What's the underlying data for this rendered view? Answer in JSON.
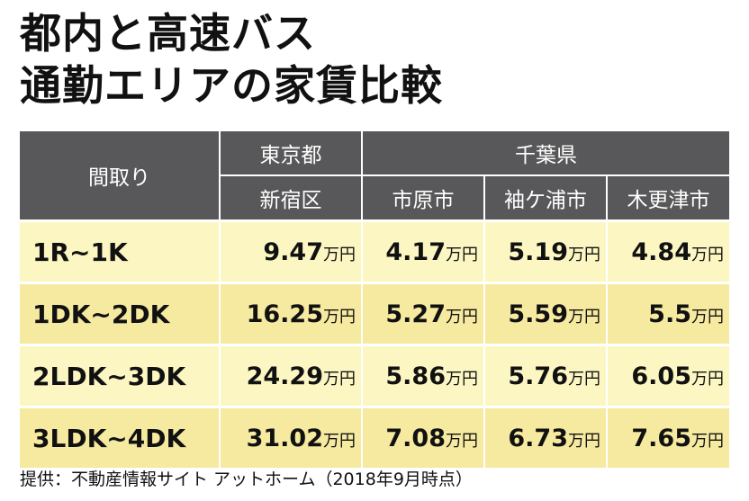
{
  "title_lines": [
    "都内と高速バス",
    "通勤エリアの家賃比較"
  ],
  "source": "提供：不動産情報サイト アットホーム（2018年9月時点）",
  "colors": {
    "header_bg": "#58585a",
    "row_light": "#fcf7c2",
    "row_dark": "#f6e9a0"
  },
  "chart_data": {
    "type": "table",
    "unit": "万円",
    "header": {
      "layout_label": "間取り",
      "groups": [
        {
          "label": "東京都",
          "columns": [
            "新宿区"
          ]
        },
        {
          "label": "千葉県",
          "columns": [
            "市原市",
            "袖ケ浦市",
            "木更津市"
          ]
        }
      ]
    },
    "rows": [
      {
        "layout": "1R~1K",
        "values": [
          "9.47",
          "4.17",
          "5.19",
          "4.84"
        ]
      },
      {
        "layout": "1DK~2DK",
        "values": [
          "16.25",
          "5.27",
          "5.59",
          "5.5"
        ]
      },
      {
        "layout": "2LDK~3DK",
        "values": [
          "24.29",
          "5.86",
          "5.76",
          "6.05"
        ]
      },
      {
        "layout": "3LDK~4DK",
        "values": [
          "31.02",
          "7.08",
          "6.73",
          "7.65"
        ]
      }
    ]
  }
}
